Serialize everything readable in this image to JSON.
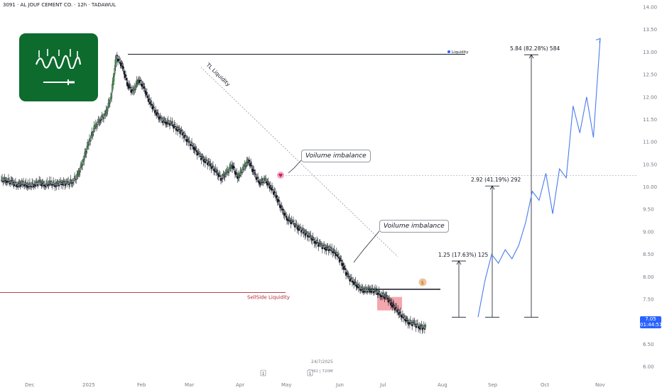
{
  "header": {
    "title": "3091 · AL JOUF CEMENT CO. · 12h · TADAWUL"
  },
  "chart_data": {
    "type": "candlestick",
    "symbol": "3091",
    "interval": "12h",
    "exchange": "TADAWUL",
    "ylim": [
      6.0,
      14.0
    ],
    "y_ticks": [
      "6.00",
      "6.50",
      "7.00",
      "7.50",
      "8.00",
      "8.50",
      "9.00",
      "9.50",
      "10.00",
      "10.50",
      "11.00",
      "11.50",
      "12.00",
      "12.50",
      "13.00",
      "13.50",
      "14.00"
    ],
    "x_ticks": [
      "Dec",
      "2025",
      "Feb",
      "Mar",
      "Apr",
      "May",
      "Jun",
      "Jul",
      "Aug",
      "Sep",
      "Oct",
      "Nov"
    ],
    "ohlc_close_path": [
      10.15,
      10.1,
      10.05,
      10.08,
      10.02,
      10.06,
      10.1,
      10.05,
      10.08,
      10.05,
      10.1,
      10.07,
      10.12,
      10.25,
      10.6,
      11.0,
      11.3,
      11.5,
      11.6,
      12.0,
      12.9,
      12.7,
      12.3,
      12.1,
      12.4,
      12.2,
      11.9,
      11.7,
      11.5,
      11.45,
      11.4,
      11.3,
      11.2,
      11.0,
      10.9,
      10.7,
      10.6,
      10.5,
      10.35,
      10.2,
      10.3,
      10.5,
      10.2,
      10.4,
      10.6,
      10.3,
      10.1,
      10.15,
      10.0,
      9.8,
      9.5,
      9.3,
      9.2,
      9.1,
      9.0,
      8.9,
      8.8,
      8.7,
      8.65,
      8.6,
      8.5,
      8.3,
      8.0,
      7.9,
      7.75,
      7.7,
      7.72,
      7.68,
      7.6,
      7.55,
      7.4,
      7.25,
      7.1,
      7.0,
      6.95,
      6.9,
      6.85,
      7.05
    ],
    "last_price": "7.05",
    "last_price_sub": "01:44:51",
    "annotations": {
      "liquidity_high": {
        "label": "Liquidity",
        "price": 12.95
      },
      "tl_liquidity": {
        "label": "TL Liquidity"
      },
      "volume_imbalance_1": {
        "label": "Voilume imbalance"
      },
      "volume_imbalance_2": {
        "label": "Voilume imbalance"
      },
      "sellside_liquidity": {
        "label": "SellSide Liquidity",
        "price": 7.65
      },
      "resistance_level": {
        "price": 7.72
      },
      "dotted_level": {
        "price": 10.25
      },
      "date_marker": "24/7/2025",
      "marker_sub": "3091 | 720M",
      "targets": [
        {
          "label": "1.25 (17.63%) 125",
          "low": 7.1,
          "high": 8.35
        },
        {
          "label": "2.92 (41.19%) 292",
          "low": 7.1,
          "high": 10.02
        },
        {
          "label": "5.84 (82.28%) 584",
          "low": 7.1,
          "high": 12.94
        }
      ]
    },
    "projection_path": [
      7.1,
      7.9,
      8.5,
      8.3,
      8.6,
      8.4,
      8.7,
      9.2,
      9.9,
      9.7,
      10.3,
      9.4,
      10.4,
      10.2,
      11.8,
      11.2,
      12.0,
      11.1,
      13.3
    ],
    "colors": {
      "up": "#4caf50",
      "down": "#131722",
      "projection": "#4a7cf0",
      "sellside": "#b22833",
      "fvg": "#f4a7ae",
      "flag": "#0d6b2e",
      "price_tag": "#2962ff"
    }
  },
  "ui": {
    "date_badge_left": "1",
    "date_badge_right": "1"
  }
}
